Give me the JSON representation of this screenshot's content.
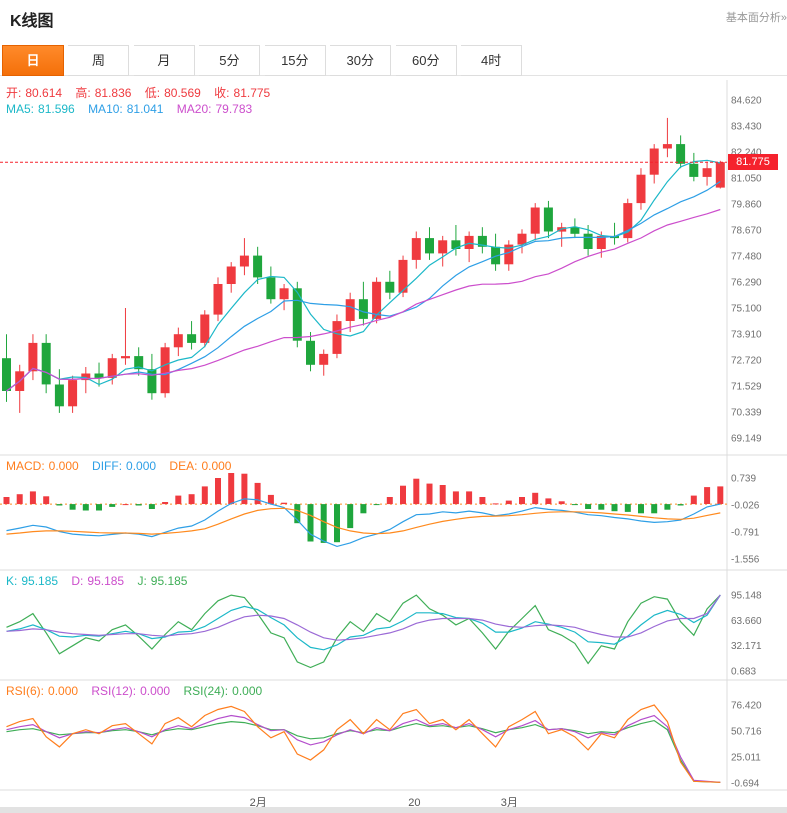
{
  "header": {
    "title": "K线图",
    "link": "基本面分析»"
  },
  "tabs": {
    "items": [
      {
        "label": "日",
        "active": true
      },
      {
        "label": "周",
        "active": false
      },
      {
        "label": "月",
        "active": false
      },
      {
        "label": "5分",
        "active": false
      },
      {
        "label": "15分",
        "active": false
      },
      {
        "label": "30分",
        "active": false
      },
      {
        "label": "60分",
        "active": false
      },
      {
        "label": "4时",
        "active": false
      }
    ]
  },
  "legend": {
    "ohlc": [
      {
        "label": "开:",
        "value": "80.614"
      },
      {
        "label": "高:",
        "value": "81.836"
      },
      {
        "label": "低:",
        "value": "80.569"
      },
      {
        "label": "收:",
        "value": "81.775"
      }
    ],
    "ma": [
      {
        "label": "MA5:",
        "value": "81.596"
      },
      {
        "label": "MA10:",
        "value": "81.041"
      },
      {
        "label": "MA20:",
        "value": "79.783"
      }
    ],
    "macd": [
      {
        "label": "MACD:",
        "value": "0.000"
      },
      {
        "label": "DIFF:",
        "value": "0.000"
      },
      {
        "label": "DEA:",
        "value": "0.000"
      }
    ],
    "kdj": [
      {
        "label": "K:",
        "value": "95.185"
      },
      {
        "label": "D:",
        "value": "95.185"
      },
      {
        "label": "J:",
        "value": "95.185"
      }
    ],
    "rsi": [
      {
        "label": "RSI(6):",
        "value": "0.000"
      },
      {
        "label": "RSI(12):",
        "value": "0.000"
      },
      {
        "label": "RSI(24):",
        "value": "0.000"
      }
    ]
  },
  "price_tag": "81.775",
  "colors": {
    "up": "#ef3a3f",
    "down": "#1fa63d",
    "ma5": "#1cb8c8",
    "ma10": "#2e9fe6",
    "ma20": "#cc4ecc",
    "diff": "#2e9fe6",
    "dea": "#ff8a1e",
    "k": "#1cb8c8",
    "d": "#9b6ad6",
    "j": "#3fae57",
    "rsi6": "#ff7e1e",
    "rsi12": "#b44ecc",
    "rsi24": "#3fae57",
    "tick": "#707070",
    "divider": "#dcdcdc",
    "price": "#f5222d"
  },
  "chart_data": {
    "type": "candlestick",
    "title": "K线图",
    "legend_position": "top-left",
    "grid": false,
    "current_price": 81.775,
    "y_ticks_main": [
      "84.620",
      "83.430",
      "82.240",
      "81.050",
      "79.860",
      "78.670",
      "77.480",
      "76.290",
      "75.100",
      "73.910",
      "72.720",
      "71.529",
      "70.339",
      "69.149"
    ],
    "x_axis_labels": [
      {
        "label": "2月",
        "index": 19
      },
      {
        "label": "20",
        "index": 31
      },
      {
        "label": "3月",
        "index": 38
      }
    ],
    "ma_periods": [
      5,
      10,
      20
    ],
    "candles": [
      [
        72.8,
        73.9,
        70.8,
        71.3
      ],
      [
        71.3,
        72.5,
        70.3,
        72.2
      ],
      [
        72.2,
        73.9,
        71.8,
        73.5
      ],
      [
        73.5,
        73.9,
        71.2,
        71.6
      ],
      [
        71.6,
        72.3,
        70.3,
        70.6
      ],
      [
        70.6,
        72.0,
        70.3,
        71.8
      ],
      [
        71.8,
        72.4,
        71.2,
        72.1
      ],
      [
        72.1,
        72.6,
        71.5,
        71.9
      ],
      [
        71.9,
        73.0,
        71.6,
        72.8
      ],
      [
        72.8,
        75.1,
        72.5,
        72.9
      ],
      [
        72.9,
        73.3,
        72.0,
        72.3
      ],
      [
        72.3,
        73.0,
        70.9,
        71.2
      ],
      [
        71.2,
        73.5,
        71.0,
        73.3
      ],
      [
        73.3,
        74.2,
        72.9,
        73.9
      ],
      [
        73.9,
        74.5,
        73.2,
        73.5
      ],
      [
        73.5,
        75.0,
        73.3,
        74.8
      ],
      [
        74.8,
        76.5,
        74.5,
        76.2
      ],
      [
        76.2,
        77.2,
        75.8,
        77.0
      ],
      [
        77.0,
        78.3,
        76.6,
        77.5
      ],
      [
        77.5,
        77.9,
        76.2,
        76.5
      ],
      [
        76.5,
        77.0,
        75.3,
        75.5
      ],
      [
        75.5,
        76.2,
        75.0,
        76.0
      ],
      [
        76.0,
        76.3,
        73.3,
        73.6
      ],
      [
        73.6,
        74.0,
        72.2,
        72.5
      ],
      [
        72.5,
        73.2,
        72.0,
        73.0
      ],
      [
        73.0,
        74.8,
        72.8,
        74.5
      ],
      [
        74.5,
        75.8,
        74.0,
        75.5
      ],
      [
        75.5,
        76.3,
        74.3,
        74.6
      ],
      [
        74.6,
        76.5,
        74.4,
        76.3
      ],
      [
        76.3,
        76.8,
        75.5,
        75.8
      ],
      [
        75.8,
        77.5,
        75.6,
        77.3
      ],
      [
        77.3,
        78.6,
        76.9,
        78.3
      ],
      [
        78.3,
        78.8,
        77.3,
        77.6
      ],
      [
        77.6,
        78.4,
        77.0,
        78.2
      ],
      [
        78.2,
        78.9,
        77.5,
        77.8
      ],
      [
        77.8,
        78.6,
        77.2,
        78.4
      ],
      [
        78.4,
        78.8,
        77.6,
        77.9
      ],
      [
        77.9,
        78.5,
        76.8,
        77.1
      ],
      [
        77.1,
        78.2,
        76.8,
        78.0
      ],
      [
        78.0,
        78.7,
        77.6,
        78.5
      ],
      [
        78.5,
        79.9,
        78.2,
        79.7
      ],
      [
        79.7,
        80.0,
        78.3,
        78.6
      ],
      [
        78.6,
        79.0,
        77.9,
        78.8
      ],
      [
        78.8,
        79.2,
        78.3,
        78.5
      ],
      [
        78.5,
        78.9,
        77.5,
        77.8
      ],
      [
        77.8,
        78.6,
        77.4,
        78.4
      ],
      [
        78.4,
        79.0,
        78.0,
        78.3
      ],
      [
        78.3,
        80.1,
        78.1,
        79.9
      ],
      [
        79.9,
        81.5,
        79.6,
        81.2
      ],
      [
        81.2,
        82.6,
        80.8,
        82.4
      ],
      [
        82.4,
        83.8,
        82.0,
        82.6
      ],
      [
        82.6,
        83.0,
        81.5,
        81.7
      ],
      [
        81.7,
        82.2,
        80.9,
        81.1
      ],
      [
        81.1,
        81.8,
        80.7,
        81.5
      ],
      [
        80.614,
        81.836,
        80.569,
        81.775
      ]
    ],
    "macd": {
      "ticks": [
        "0.739",
        "-0.026",
        "-0.791",
        "-1.556"
      ],
      "diff": [
        -0.75,
        -0.68,
        -0.6,
        -0.65,
        -0.78,
        -0.85,
        -0.88,
        -0.9,
        -0.86,
        -0.82,
        -0.85,
        -0.92,
        -0.8,
        -0.68,
        -0.62,
        -0.45,
        -0.2,
        0.02,
        0.15,
        0.12,
        0.0,
        -0.1,
        -0.45,
        -0.85,
        -1.05,
        -1.2,
        -1.1,
        -0.95,
        -0.85,
        -0.72,
        -0.5,
        -0.3,
        -0.28,
        -0.22,
        -0.25,
        -0.2,
        -0.25,
        -0.33,
        -0.28,
        -0.2,
        -0.1,
        -0.15,
        -0.18,
        -0.23,
        -0.3,
        -0.33,
        -0.38,
        -0.42,
        -0.48,
        -0.52,
        -0.5,
        -0.45,
        -0.28,
        -0.08,
        0.0
      ],
      "dea": [
        -0.85,
        -0.82,
        -0.78,
        -0.76,
        -0.76,
        -0.77,
        -0.79,
        -0.81,
        -0.82,
        -0.82,
        -0.83,
        -0.85,
        -0.83,
        -0.8,
        -0.76,
        -0.7,
        -0.57,
        -0.42,
        -0.28,
        -0.18,
        -0.13,
        -0.12,
        -0.18,
        -0.32,
        -0.5,
        -0.66,
        -0.76,
        -0.82,
        -0.84,
        -0.82,
        -0.76,
        -0.66,
        -0.57,
        -0.49,
        -0.43,
        -0.38,
        -0.35,
        -0.34,
        -0.33,
        -0.3,
        -0.26,
        -0.23,
        -0.22,
        -0.22,
        -0.23,
        -0.25,
        -0.28,
        -0.31,
        -0.35,
        -0.39,
        -0.42,
        -0.43,
        -0.4,
        -0.32,
        -0.25
      ]
    },
    "kdj": {
      "ticks": [
        "95.148",
        "63.660",
        "32.171",
        "0.683"
      ],
      "k": [
        50,
        53,
        58,
        52,
        44,
        43,
        45,
        44,
        47,
        50,
        47,
        41,
        43,
        49,
        50,
        56,
        66,
        76,
        81,
        77,
        67,
        58,
        42,
        30,
        27,
        33,
        43,
        45,
        53,
        55,
        63,
        73,
        73,
        72,
        67,
        66,
        60,
        49,
        49,
        54,
        62,
        59,
        55,
        49,
        37,
        36,
        34,
        44,
        58,
        70,
        76,
        71,
        61,
        70,
        95.2
      ],
      "d": [
        50,
        51,
        53,
        52,
        49,
        47,
        46,
        45,
        46,
        47,
        47,
        45,
        44,
        46,
        47,
        50,
        55,
        62,
        68,
        70,
        69,
        66,
        58,
        49,
        42,
        39,
        40,
        42,
        45,
        48,
        53,
        60,
        64,
        66,
        66,
        66,
        64,
        59,
        56,
        55,
        57,
        58,
        57,
        55,
        50,
        46,
        43,
        43,
        48,
        56,
        63,
        66,
        66,
        72,
        95.2
      ],
      "j": [
        55,
        62,
        72,
        48,
        22,
        32,
        42,
        38,
        52,
        58,
        44,
        28,
        46,
        62,
        52,
        72,
        88,
        95,
        92,
        72,
        48,
        42,
        12,
        5,
        12,
        42,
        62,
        50,
        72,
        62,
        85,
        95,
        78,
        70,
        58,
        66,
        48,
        28,
        50,
        66,
        82,
        52,
        45,
        35,
        10,
        32,
        28,
        62,
        85,
        93,
        90,
        62,
        45,
        78,
        95.2
      ]
    },
    "rsi": {
      "ticks": [
        "76.420",
        "50.716",
        "25.011",
        "-0.694"
      ],
      "rsi6": [
        55,
        60,
        63,
        45,
        35,
        48,
        52,
        48,
        56,
        58,
        48,
        38,
        58,
        64,
        55,
        66,
        72,
        75,
        70,
        55,
        44,
        50,
        28,
        22,
        32,
        52,
        62,
        48,
        62,
        52,
        68,
        72,
        58,
        62,
        52,
        62,
        48,
        35,
        55,
        62,
        70,
        48,
        52,
        45,
        32,
        48,
        44,
        62,
        72,
        76.4,
        60,
        20,
        1,
        0.5,
        0
      ],
      "rsi12": [
        52,
        55,
        57,
        50,
        44,
        48,
        50,
        49,
        52,
        54,
        50,
        45,
        52,
        56,
        53,
        58,
        63,
        66,
        64,
        57,
        51,
        52,
        42,
        37,
        40,
        47,
        52,
        48,
        54,
        51,
        58,
        62,
        56,
        58,
        54,
        58,
        52,
        45,
        52,
        56,
        61,
        52,
        53,
        50,
        44,
        49,
        47,
        56,
        62,
        66,
        55,
        25,
        2,
        1,
        0
      ],
      "rsi24": [
        50,
        52,
        53,
        50,
        47,
        48,
        49,
        49,
        51,
        52,
        50,
        47,
        51,
        53,
        52,
        55,
        58,
        60,
        59,
        56,
        52,
        52,
        46,
        43,
        44,
        48,
        51,
        49,
        52,
        51,
        55,
        58,
        55,
        56,
        54,
        56,
        53,
        49,
        52,
        54,
        57,
        52,
        53,
        51,
        48,
        50,
        49,
        54,
        58,
        61,
        52,
        22,
        1,
        0.5,
        0
      ]
    }
  }
}
